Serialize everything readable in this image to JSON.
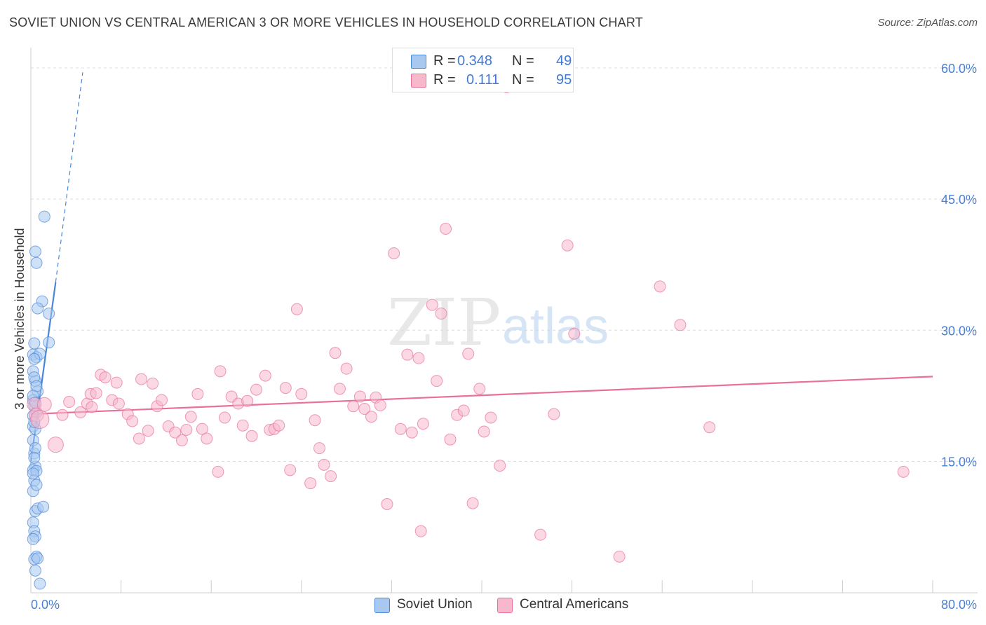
{
  "title": "SOVIET UNION VS CENTRAL AMERICAN 3 OR MORE VEHICLES IN HOUSEHOLD CORRELATION CHART",
  "source": "Source: ZipAtlas.com",
  "watermark": {
    "zip": "ZIP",
    "atlas": "atlas"
  },
  "legend": {
    "rows": [
      {
        "r_label": "R =",
        "r_value": "0.348",
        "n_label": "N =",
        "n_value": "49",
        "color": "#a8c8f0"
      },
      {
        "r_label": "R =",
        "r_value": "0.111",
        "n_label": "N =",
        "n_value": "95",
        "color": "#f7b8cc"
      }
    ]
  },
  "bottom_legend": [
    {
      "label": "Soviet Union",
      "color": "#a8c8f0"
    },
    {
      "label": "Central Americans",
      "color": "#f7b8cc"
    }
  ],
  "chart_data": {
    "type": "scatter",
    "ylabel": "3 or more Vehicles in Household",
    "xlabel": "",
    "x_tick_labels": [
      "0.0%",
      "80.0%"
    ],
    "y_tick_labels": [
      "60.0%",
      "45.0%",
      "30.0%",
      "15.0%"
    ],
    "y_ticks": [
      60,
      45,
      30,
      15
    ],
    "xlim": [
      0,
      80
    ],
    "ylim": [
      0,
      62
    ],
    "grid": "horizontal dashed",
    "series": [
      {
        "name": "Soviet Union",
        "color": "#4a86d8",
        "fill": "#a8c8f0",
        "trend": {
          "x0": 0.0,
          "y0": 15.0,
          "x1": 2.2,
          "y1": 35.5,
          "ext_x1": 4.6,
          "ext_y1": 59.5
        },
        "points": [
          [
            0.2,
            27.2
          ],
          [
            0.3,
            28.5
          ],
          [
            0.5,
            26.9
          ],
          [
            0.4,
            24.2
          ],
          [
            0.6,
            23.0
          ],
          [
            0.2,
            22.0
          ],
          [
            0.3,
            21.4
          ],
          [
            0.5,
            20.6
          ],
          [
            0.2,
            19.0
          ],
          [
            0.4,
            18.7
          ],
          [
            0.2,
            17.4
          ],
          [
            0.3,
            15.9
          ],
          [
            0.4,
            14.4
          ],
          [
            0.2,
            14.0
          ],
          [
            0.5,
            13.9
          ],
          [
            0.3,
            12.8
          ],
          [
            0.2,
            11.6
          ],
          [
            0.4,
            9.3
          ],
          [
            0.6,
            9.6
          ],
          [
            0.2,
            8.0
          ],
          [
            0.3,
            7.0
          ],
          [
            0.4,
            6.4
          ],
          [
            0.2,
            6.1
          ],
          [
            0.5,
            4.1
          ],
          [
            0.3,
            3.8
          ],
          [
            0.6,
            3.9
          ],
          [
            0.4,
            2.5
          ],
          [
            0.8,
            1.0
          ],
          [
            1.2,
            43.0
          ],
          [
            0.4,
            39.0
          ],
          [
            0.5,
            37.7
          ],
          [
            1.0,
            33.3
          ],
          [
            0.6,
            32.5
          ],
          [
            1.6,
            31.9
          ],
          [
            1.6,
            28.6
          ],
          [
            0.8,
            27.3
          ],
          [
            0.3,
            26.7
          ],
          [
            0.2,
            25.3
          ],
          [
            0.3,
            24.6
          ],
          [
            0.5,
            23.6
          ],
          [
            0.2,
            22.5
          ],
          [
            0.4,
            21.7
          ],
          [
            0.2,
            20.2
          ],
          [
            0.3,
            19.5
          ],
          [
            0.4,
            16.5
          ],
          [
            0.3,
            15.4
          ],
          [
            0.2,
            13.6
          ],
          [
            0.5,
            12.3
          ],
          [
            1.1,
            9.8
          ]
        ]
      },
      {
        "name": "Central Americans",
        "color": "#e8709a",
        "fill": "#f7b8cc",
        "trend": {
          "x0": 0.0,
          "y0": 20.4,
          "x1": 80.0,
          "y1": 24.7
        },
        "points": [
          [
            0.3,
            21.5
          ],
          [
            0.5,
            20.3
          ],
          [
            0.8,
            19.8
          ],
          [
            1.2,
            21.5
          ],
          [
            2.2,
            16.9
          ],
          [
            2.8,
            20.3
          ],
          [
            3.4,
            21.8
          ],
          [
            4.4,
            20.6
          ],
          [
            5.0,
            21.6
          ],
          [
            5.4,
            21.2
          ],
          [
            5.3,
            22.7
          ],
          [
            5.8,
            22.8
          ],
          [
            6.2,
            24.9
          ],
          [
            6.6,
            24.6
          ],
          [
            7.2,
            22.0
          ],
          [
            7.6,
            24.0
          ],
          [
            7.8,
            21.6
          ],
          [
            8.6,
            20.4
          ],
          [
            9.0,
            19.6
          ],
          [
            9.6,
            17.6
          ],
          [
            9.8,
            24.4
          ],
          [
            10.4,
            18.5
          ],
          [
            10.8,
            23.9
          ],
          [
            11.2,
            21.3
          ],
          [
            11.6,
            22.0
          ],
          [
            12.2,
            19.0
          ],
          [
            12.8,
            18.3
          ],
          [
            13.4,
            17.4
          ],
          [
            13.8,
            18.6
          ],
          [
            14.2,
            20.1
          ],
          [
            14.8,
            22.7
          ],
          [
            15.2,
            18.7
          ],
          [
            15.6,
            17.6
          ],
          [
            16.6,
            13.8
          ],
          [
            16.8,
            25.3
          ],
          [
            17.2,
            20.0
          ],
          [
            17.8,
            22.4
          ],
          [
            18.4,
            21.6
          ],
          [
            18.8,
            19.1
          ],
          [
            19.2,
            21.9
          ],
          [
            19.6,
            17.9
          ],
          [
            20.0,
            23.2
          ],
          [
            20.8,
            24.8
          ],
          [
            21.2,
            18.6
          ],
          [
            21.6,
            18.7
          ],
          [
            22.0,
            19.1
          ],
          [
            22.6,
            23.4
          ],
          [
            23.0,
            14.0
          ],
          [
            23.6,
            32.4
          ],
          [
            24.0,
            22.7
          ],
          [
            24.8,
            12.5
          ],
          [
            25.2,
            19.7
          ],
          [
            25.6,
            16.5
          ],
          [
            26.0,
            14.6
          ],
          [
            26.6,
            13.3
          ],
          [
            27.0,
            27.4
          ],
          [
            27.4,
            23.3
          ],
          [
            28.0,
            25.6
          ],
          [
            28.6,
            21.3
          ],
          [
            29.2,
            22.4
          ],
          [
            29.6,
            21.0
          ],
          [
            30.2,
            20.1
          ],
          [
            30.6,
            22.3
          ],
          [
            31.0,
            21.4
          ],
          [
            31.6,
            10.1
          ],
          [
            32.2,
            38.8
          ],
          [
            32.8,
            18.7
          ],
          [
            33.4,
            27.2
          ],
          [
            33.8,
            18.3
          ],
          [
            34.4,
            26.8
          ],
          [
            34.8,
            19.3
          ],
          [
            34.6,
            7.0
          ],
          [
            35.6,
            32.9
          ],
          [
            36.0,
            24.2
          ],
          [
            36.4,
            31.9
          ],
          [
            36.8,
            41.6
          ],
          [
            37.2,
            17.5
          ],
          [
            37.8,
            20.3
          ],
          [
            38.4,
            20.8
          ],
          [
            38.8,
            27.3
          ],
          [
            39.2,
            10.2
          ],
          [
            39.8,
            23.3
          ],
          [
            40.2,
            18.4
          ],
          [
            40.8,
            20.0
          ],
          [
            41.6,
            14.5
          ],
          [
            42.2,
            57.8
          ],
          [
            45.2,
            6.6
          ],
          [
            46.4,
            20.4
          ],
          [
            47.6,
            39.7
          ],
          [
            48.2,
            29.6
          ],
          [
            52.2,
            4.1
          ],
          [
            55.8,
            35.0
          ],
          [
            57.6,
            30.6
          ],
          [
            60.2,
            18.9
          ],
          [
            77.4,
            13.8
          ]
        ]
      }
    ]
  }
}
